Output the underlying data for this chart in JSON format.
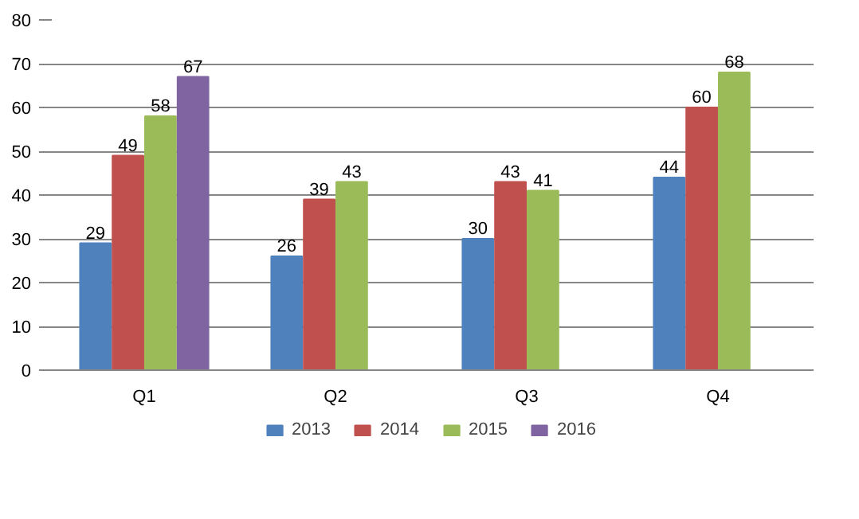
{
  "chart_data": {
    "type": "bar",
    "categories": [
      "Q1",
      "Q2",
      "Q3",
      "Q4"
    ],
    "series": [
      {
        "name": "2013",
        "color": "#4f81bd",
        "values": [
          29,
          26,
          30,
          44
        ]
      },
      {
        "name": "2014",
        "color": "#c0504d",
        "values": [
          49,
          39,
          43,
          60
        ]
      },
      {
        "name": "2015",
        "color": "#9bbb59",
        "values": [
          58,
          43,
          41,
          68
        ]
      },
      {
        "name": "2016",
        "color": "#8064a2",
        "values": [
          67,
          null,
          null,
          null
        ]
      }
    ],
    "ylim": [
      0,
      80
    ],
    "yticks": [
      0,
      10,
      20,
      30,
      40,
      50,
      60,
      70,
      80
    ],
    "grid": "y",
    "legend": "bottom",
    "data_labels": true
  }
}
